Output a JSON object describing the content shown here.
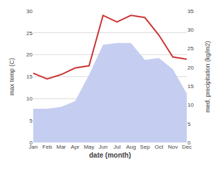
{
  "chart_data": {
    "type": "line",
    "x_label": "date (month)",
    "y_label": "max temp (C)",
    "y2_label": "med. precipitation (kg/m2)",
    "categories": [
      "Jan",
      "Feb",
      "Mar",
      "Apr",
      "May",
      "Jun",
      "Jul",
      "Aug",
      "Sep",
      "Oct",
      "Nov",
      "Dec"
    ],
    "series": [
      {
        "type": "line",
        "color": "#cc3333",
        "values": [
          15.8,
          14.5,
          15.5,
          17.0,
          17.5,
          29.0,
          27.5,
          29.0,
          28.5,
          24.5,
          19.5,
          19.0
        ]
      },
      {
        "type": "area",
        "color": "#c5cef0",
        "axis": "y2",
        "values": [
          9.0,
          9.0,
          9.5,
          11.0,
          18.0,
          26.0,
          26.5,
          26.5,
          22.0,
          22.5,
          19.5,
          13.0
        ]
      }
    ],
    "ylim": [
      0,
      30
    ],
    "yticks": [
      0,
      5,
      10,
      15,
      20,
      25,
      30
    ],
    "y2lim": [
      0,
      35
    ],
    "y2ticks": [
      0,
      5,
      10,
      15,
      20,
      25,
      30,
      35
    ],
    "grid": true
  }
}
